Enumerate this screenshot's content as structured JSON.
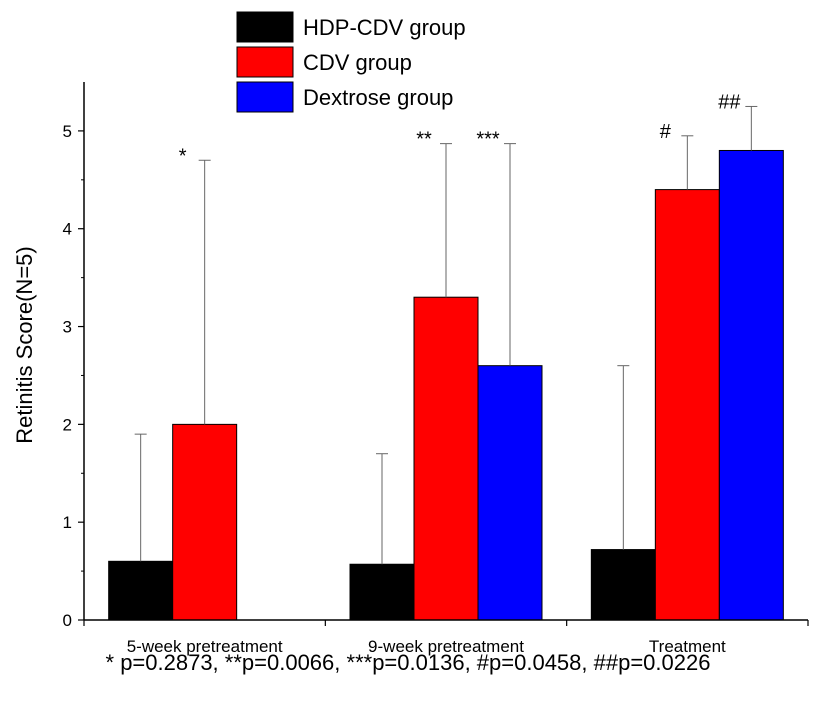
{
  "chart_data": {
    "type": "bar",
    "title": "",
    "xlabel": "",
    "ylabel": "Retinitis Score(N=5)",
    "ylim": [
      0,
      5.5
    ],
    "yticks": [
      "0",
      "1",
      "2",
      "3",
      "4",
      "5"
    ],
    "grid": false,
    "legend_position": "top-center",
    "categories": [
      "5-week pretreatment",
      "9-week pretreatment",
      "Treatment"
    ],
    "series": [
      {
        "name": "HDP-CDV group",
        "color": "#000000",
        "values": [
          0.6,
          0.57,
          0.72
        ],
        "error": [
          1.3,
          1.13,
          1.88
        ]
      },
      {
        "name": "CDV group",
        "color": "#ff0000",
        "values": [
          2.0,
          3.3,
          4.4
        ],
        "error": [
          2.7,
          1.57,
          0.55
        ]
      },
      {
        "name": "Dextrose group",
        "color": "#0000ff",
        "values": [
          null,
          2.6,
          4.8
        ],
        "error": [
          null,
          2.27,
          0.45
        ]
      }
    ],
    "annotations": [
      {
        "text": "*",
        "category": 0,
        "series": 1
      },
      {
        "text": "**",
        "category": 1,
        "series": 1
      },
      {
        "text": "***",
        "category": 1,
        "series": 2
      },
      {
        "text": "#",
        "category": 2,
        "series": 1
      },
      {
        "text": "##",
        "category": 2,
        "series": 2
      }
    ],
    "footnote": "* p=0.2873, **p=0.0066, ***p=0.0136, #p=0.0458, ##p=0.0226"
  }
}
